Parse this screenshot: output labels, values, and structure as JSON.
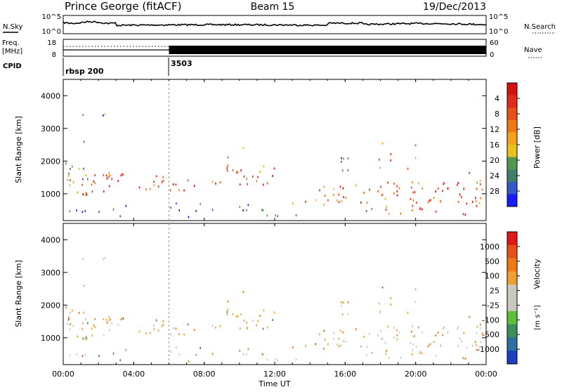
{
  "header": {
    "station": "Prince George (fitACF)",
    "beam": "Beam 15",
    "date": "19/Dec/2013"
  },
  "top_panels": {
    "nsky_label": "N.Sky",
    "nsky_ticks": [
      "10^5",
      "10^0"
    ],
    "nsearch_label": "N.Search",
    "nsearch_ticks": [
      "10^5",
      "10^0"
    ],
    "freq_label_1": "Freq.",
    "freq_label_2": "[MHz]",
    "freq_ticks": [
      "18",
      "8"
    ],
    "nave_label": "Nave",
    "nave_ticks": [
      "60",
      "0"
    ],
    "cpid_label": "CPID",
    "cpid_segments": [
      {
        "label": "rbsp 200",
        "start_hour": 0
      },
      {
        "label": "3503",
        "start_hour": 6
      }
    ]
  },
  "chart_data": [
    {
      "type": "heatmap",
      "title": "",
      "xlabel": "",
      "ylabel": "Slant Range [km]",
      "xlim": [
        0,
        24
      ],
      "ylim": [
        180,
        4500
      ],
      "yticks": [
        "1000",
        "2000",
        "3000",
        "4000"
      ],
      "colorbar_label": "Power [dB]",
      "colorbar_ticks": [
        "4",
        "8",
        "12",
        "16",
        "20",
        "24",
        "28"
      ],
      "colorbar_colors": [
        "#1a1aff",
        "#3358c8",
        "#3f7f6a",
        "#4f9a4f",
        "#e8c21a",
        "#f5a31a",
        "#f07a12",
        "#e85015",
        "#e02a1a",
        "#d61010"
      ]
    },
    {
      "type": "heatmap",
      "title": "",
      "xlabel": "Time UT",
      "ylabel": "Slant Range [km]",
      "xlim": [
        0,
        24
      ],
      "ylim": [
        180,
        4500
      ],
      "yticks": [
        "1000",
        "2000",
        "3000",
        "4000"
      ],
      "xticks": [
        "00:00",
        "04:00",
        "08:00",
        "12:00",
        "16:00",
        "20:00",
        "00:00"
      ],
      "colorbar_label": "Velocity",
      "colorbar_unit": "[m s⁻¹]",
      "colorbar_ticks": [
        "1000",
        "500",
        "100",
        "25",
        "-25",
        "-100",
        "-500",
        "-1000"
      ],
      "colorbar_colors": [
        "#1d3fbf",
        "#2d6f9f",
        "#3c8f5a",
        "#5fbf3a",
        "#c8c8c0",
        "#c8c8c0",
        "#f0a030",
        "#f07a12",
        "#e84f15",
        "#e01818"
      ]
    }
  ]
}
